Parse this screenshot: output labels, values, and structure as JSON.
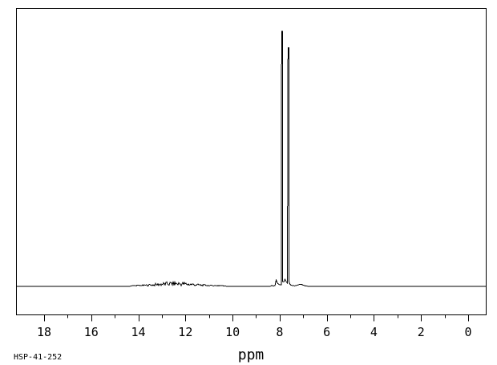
{
  "page": {
    "background_color": "#ffffff",
    "ink_color": "#000000"
  },
  "footer": {
    "spectrum_id": "HSP-41-252"
  },
  "chart_data": {
    "type": "line",
    "kind": "1H NMR spectrum trace",
    "title": "",
    "xlabel": "ppm",
    "ylabel": "",
    "grid": false,
    "legend": null,
    "x_axis": {
      "unit": "ppm",
      "min": -0.8,
      "max": 19.2,
      "reversed": true,
      "major_ticks": [
        18,
        16,
        14,
        12,
        10,
        8,
        6,
        4,
        2,
        0
      ],
      "minor_ticks": [
        17,
        15,
        13,
        11,
        9,
        7,
        5,
        3,
        1
      ]
    },
    "y_axis": {
      "visible": false
    },
    "baseline": "flat",
    "peaks": [
      {
        "ppm": 7.9,
        "height_frac": 1.0
      },
      {
        "ppm": 7.63,
        "height_frac": 0.935
      }
    ],
    "minor_features": [
      {
        "ppm": 8.15,
        "height_frac": 0.025,
        "type": "left-shoulder-bump"
      },
      {
        "ppm": 7.77,
        "height_frac": 0.028,
        "type": "inter-peak-bump"
      },
      {
        "ppm": 7.15,
        "height_frac": 0.008,
        "type": "satellite-bump"
      }
    ],
    "noise_band": {
      "from_ppm": 14.3,
      "to_ppm": 10.3,
      "center_ppm": 12.45,
      "max_height_frac": 0.016,
      "note": "broad weak baseline noise hump"
    }
  }
}
